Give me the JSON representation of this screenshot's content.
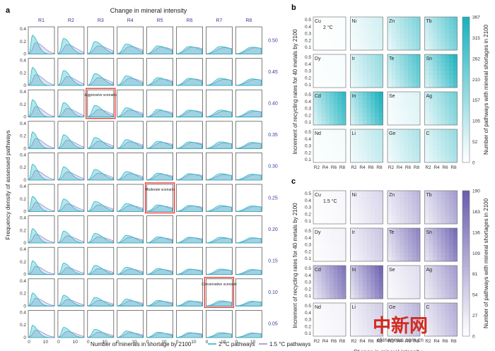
{
  "panel_a": {
    "label": "a",
    "top_title": "Change in mineral intensity",
    "columns": [
      "R1",
      "R2",
      "R3",
      "R4",
      "R5",
      "R6",
      "R7",
      "R8"
    ],
    "rows": [
      "0.50",
      "0.45",
      "0.40",
      "0.35",
      "0.30",
      "0.25",
      "0.20",
      "0.15",
      "0.10",
      "0.05"
    ],
    "ylabel": "Frequency density of assessed pathways",
    "xlabel": "Number of minerals in shortage by 2100",
    "y_ticks": [
      "0",
      "0.2",
      "0.4"
    ],
    "x_ticks": [
      "0",
      "10"
    ],
    "annotations": [
      {
        "text": "Aggressive scenario",
        "row": 2,
        "col": 2
      },
      {
        "text": "Moderate scenario",
        "row": 5,
        "col": 4
      },
      {
        "text": "Conservative scenario",
        "row": 8,
        "col": 6
      }
    ],
    "legend": [
      {
        "label": "2 °C pathways",
        "color": "#29b8c8"
      },
      {
        "label": "1.5 °C pathways",
        "color": "#9a8fc8"
      }
    ]
  },
  "panel_b": {
    "label": "b",
    "scenario": "2 °C",
    "minerals": [
      [
        "Cu",
        "Ni",
        "Zn",
        "Tb"
      ],
      [
        "Dy",
        "Ir",
        "Te",
        "Sn"
      ],
      [
        "Cd",
        "In",
        "Se",
        "Ag"
      ],
      [
        "Nd",
        "Li",
        "Ge",
        "C"
      ]
    ],
    "colorbar_ticks": [
      "367",
      "315",
      "262",
      "210",
      "157",
      "105",
      "52",
      "0"
    ],
    "colorbar_label": "Number of pathways with mineral shortages in 2100",
    "color": "#1ab2bf"
  },
  "panel_c": {
    "label": "c",
    "scenario": "1.5 °C",
    "minerals": [
      [
        "Cu",
        "Ni",
        "Zn",
        "Tb"
      ],
      [
        "Dy",
        "Ir",
        "Te",
        "Sn"
      ],
      [
        "Cd",
        "In",
        "Se",
        "Ag"
      ],
      [
        "Nd",
        "Li",
        "Ge",
        "C"
      ]
    ],
    "colorbar_ticks": [
      "190",
      "163",
      "136",
      "109",
      "81",
      "54",
      "27",
      "0"
    ],
    "colorbar_label": "Number of pathways with mineral shortages in 2100",
    "color": "#6a5fb0"
  },
  "heat_axes": {
    "ylabel": "Increment of recycling rates for 40 metals by 2100",
    "xlabel": "Change in mineral intensity",
    "y_ticks": [
      "0.5",
      "0.4",
      "0.3",
      "0.2",
      "0.1"
    ],
    "x_ticks": [
      "R2",
      "R4",
      "R6",
      "R8"
    ]
  },
  "watermark": {
    "main": "中新网",
    "sub": "chinanews.com.cn"
  },
  "chart_data": [
    {
      "type": "area",
      "title": "Change in mineral intensity",
      "xlabel": "Number of minerals in shortage by 2100",
      "ylabel": "Frequency density of assessed pathways",
      "xlim": [
        0,
        15
      ],
      "ylim": [
        0,
        0.4
      ],
      "series": [
        {
          "name": "2 °C pathways",
          "peak_x": [
            2,
            3,
            4,
            5,
            6,
            7,
            8,
            9
          ],
          "peak_y": [
            0.3,
            0.25,
            0.2,
            0.16,
            0.13,
            0.12,
            0.12,
            0.11
          ]
        },
        {
          "name": "1.5 °C pathways",
          "peak_x": [
            4,
            5,
            6,
            7,
            8,
            9,
            10,
            11
          ],
          "peak_y": [
            0.18,
            0.15,
            0.13,
            0.12,
            0.11,
            0.11,
            0.1,
            0.1
          ]
        }
      ]
    },
    {
      "type": "heatmap",
      "scenario": "2 °C",
      "minerals": [
        "Cu",
        "Ni",
        "Zn",
        "Tb",
        "Dy",
        "Ir",
        "Te",
        "Sn",
        "Cd",
        "In",
        "Se",
        "Ag",
        "Nd",
        "Li",
        "Ge",
        "C"
      ],
      "max_fraction": [
        0.02,
        0.2,
        0.55,
        0.7,
        0.04,
        0.45,
        0.75,
        0.95,
        0.9,
        0.98,
        0.15,
        0.6,
        0.05,
        0.3,
        0.35,
        0.45
      ],
      "colorbar_range": [
        0,
        367
      ]
    },
    {
      "type": "heatmap",
      "scenario": "1.5 °C",
      "minerals": [
        "Cu",
        "Ni",
        "Zn",
        "Tb",
        "Dy",
        "Ir",
        "Te",
        "Sn",
        "Cd",
        "In",
        "Se",
        "Ag",
        "Nd",
        "Li",
        "Ge",
        "C"
      ],
      "max_fraction": [
        0.05,
        0.25,
        0.45,
        0.6,
        0.08,
        0.35,
        0.75,
        0.9,
        0.85,
        0.95,
        0.2,
        0.6,
        0.08,
        0.3,
        0.45,
        0.5
      ],
      "colorbar_range": [
        0,
        190
      ]
    }
  ]
}
